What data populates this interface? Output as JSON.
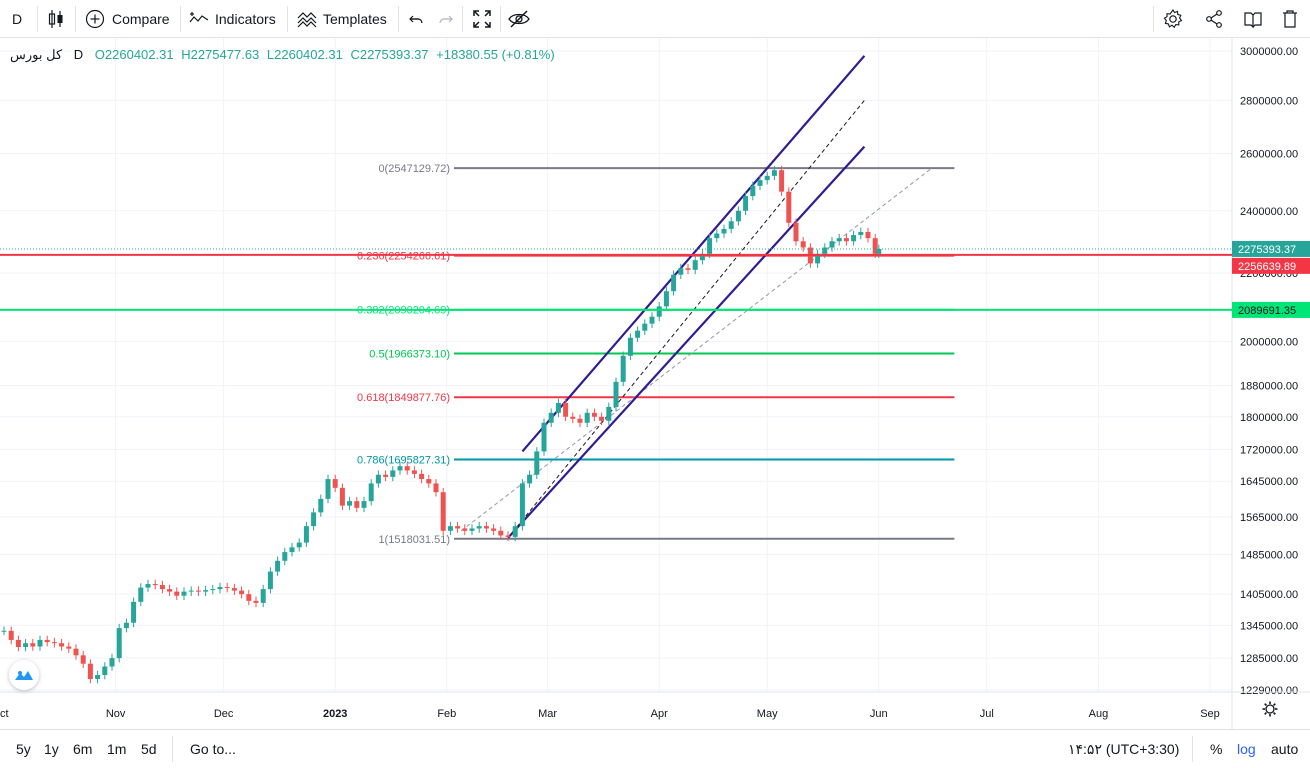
{
  "toolbar": {
    "interval": "D",
    "compare": "Compare",
    "indicators": "Indicators",
    "templates": "Templates"
  },
  "legend": {
    "symbol": "کل بورس",
    "interval": "D",
    "open": "O2260402.31",
    "high": "H2275477.63",
    "low": "L2260402.31",
    "close": "C2275393.37",
    "change": "+18380.55 (+0.81%)"
  },
  "colors": {
    "up": "#26a69a",
    "down": "#ef5350",
    "channel": "#311b92",
    "fib_gray": "#787b86",
    "fib_red": "#f23645",
    "fib_green": "#22ab94",
    "fib_lime": "#00e676",
    "fib_teal": "#0097a7"
  },
  "chart_data": {
    "type": "candlestick",
    "title": "کل بورس, D",
    "y_axis": {
      "min": 1229000,
      "max": 3000000,
      "scale": "log",
      "ticks": [
        1229000,
        1285000,
        1345000,
        1405000,
        1485000,
        1565000,
        1645000,
        1720000,
        1800000,
        1880000,
        2000000,
        2089691.35,
        2200000,
        2256639.89,
        2275393.37,
        2400000,
        2600000,
        2800000,
        3000000
      ],
      "tick_labels": [
        "1229000.00",
        "1285000.00",
        "1345000.00",
        "1405000.00",
        "1485000.00",
        "1565000.00",
        "1645000.00",
        "1720000.00",
        "1800000.00",
        "1880000.00",
        "2000000.00",
        "2089691.35",
        "2200000.00",
        "2256639.89",
        "2275393.37",
        "2400000.00",
        "2600000.00",
        "2800000.00",
        "3000000.00"
      ]
    },
    "x_axis": {
      "labels": [
        "Oct",
        "Nov",
        "Dec",
        "2023",
        "Feb",
        "Mar",
        "Apr",
        "May",
        "Jun",
        "Jul",
        "Aug",
        "Sep"
      ],
      "label_day_index": [
        0,
        31,
        61,
        92,
        123,
        151,
        182,
        212,
        243,
        273,
        304,
        335
      ]
    },
    "candles_daily_close": [
      {
        "d": 0,
        "c": 1335000
      },
      {
        "d": 2,
        "c": 1318000
      },
      {
        "d": 4,
        "c": 1305000
      },
      {
        "d": 6,
        "c": 1312000
      },
      {
        "d": 8,
        "c": 1306000
      },
      {
        "d": 10,
        "c": 1318000
      },
      {
        "d": 12,
        "c": 1314000
      },
      {
        "d": 14,
        "c": 1312000
      },
      {
        "d": 16,
        "c": 1306000
      },
      {
        "d": 18,
        "c": 1302000
      },
      {
        "d": 20,
        "c": 1290000
      },
      {
        "d": 22,
        "c": 1275000
      },
      {
        "d": 24,
        "c": 1248000
      },
      {
        "d": 26,
        "c": 1255000
      },
      {
        "d": 28,
        "c": 1270000
      },
      {
        "d": 30,
        "c": 1285000
      },
      {
        "d": 32,
        "c": 1340000
      },
      {
        "d": 34,
        "c": 1350000
      },
      {
        "d": 36,
        "c": 1390000
      },
      {
        "d": 38,
        "c": 1418000
      },
      {
        "d": 40,
        "c": 1425000
      },
      {
        "d": 42,
        "c": 1423000
      },
      {
        "d": 44,
        "c": 1415000
      },
      {
        "d": 46,
        "c": 1410000
      },
      {
        "d": 48,
        "c": 1402000
      },
      {
        "d": 50,
        "c": 1410000
      },
      {
        "d": 52,
        "c": 1412000
      },
      {
        "d": 54,
        "c": 1410000
      },
      {
        "d": 56,
        "c": 1413000
      },
      {
        "d": 58,
        "c": 1415000
      },
      {
        "d": 60,
        "c": 1419000
      },
      {
        "d": 62,
        "c": 1417000
      },
      {
        "d": 64,
        "c": 1412000
      },
      {
        "d": 66,
        "c": 1405000
      },
      {
        "d": 68,
        "c": 1392000
      },
      {
        "d": 70,
        "c": 1388000
      },
      {
        "d": 72,
        "c": 1415000
      },
      {
        "d": 74,
        "c": 1450000
      },
      {
        "d": 76,
        "c": 1472000
      },
      {
        "d": 78,
        "c": 1490000
      },
      {
        "d": 80,
        "c": 1500000
      },
      {
        "d": 82,
        "c": 1510000
      },
      {
        "d": 84,
        "c": 1545000
      },
      {
        "d": 86,
        "c": 1575000
      },
      {
        "d": 88,
        "c": 1605000
      },
      {
        "d": 90,
        "c": 1650000
      },
      {
        "d": 92,
        "c": 1630000
      },
      {
        "d": 94,
        "c": 1590000
      },
      {
        "d": 96,
        "c": 1600000
      },
      {
        "d": 98,
        "c": 1585000
      },
      {
        "d": 100,
        "c": 1600000
      },
      {
        "d": 102,
        "c": 1640000
      },
      {
        "d": 104,
        "c": 1660000
      },
      {
        "d": 106,
        "c": 1655000
      },
      {
        "d": 108,
        "c": 1670000
      },
      {
        "d": 110,
        "c": 1680000
      },
      {
        "d": 112,
        "c": 1670000
      },
      {
        "d": 114,
        "c": 1662000
      },
      {
        "d": 116,
        "c": 1650000
      },
      {
        "d": 118,
        "c": 1640000
      },
      {
        "d": 120,
        "c": 1620000
      },
      {
        "d": 122,
        "c": 1535000
      },
      {
        "d": 124,
        "c": 1545000
      },
      {
        "d": 126,
        "c": 1540000
      },
      {
        "d": 128,
        "c": 1535000
      },
      {
        "d": 130,
        "c": 1540000
      },
      {
        "d": 132,
        "c": 1545000
      },
      {
        "d": 134,
        "c": 1540000
      },
      {
        "d": 136,
        "c": 1535000
      },
      {
        "d": 138,
        "c": 1525000
      },
      {
        "d": 140,
        "c": 1522000
      },
      {
        "d": 142,
        "c": 1545000
      },
      {
        "d": 144,
        "c": 1640000
      },
      {
        "d": 146,
        "c": 1660000
      },
      {
        "d": 148,
        "c": 1715000
      },
      {
        "d": 150,
        "c": 1785000
      },
      {
        "d": 152,
        "c": 1810000
      },
      {
        "d": 154,
        "c": 1835000
      },
      {
        "d": 156,
        "c": 1800000
      },
      {
        "d": 158,
        "c": 1795000
      },
      {
        "d": 160,
        "c": 1785000
      },
      {
        "d": 162,
        "c": 1810000
      },
      {
        "d": 164,
        "c": 1800000
      },
      {
        "d": 166,
        "c": 1790000
      },
      {
        "d": 168,
        "c": 1825000
      },
      {
        "d": 170,
        "c": 1890000
      },
      {
        "d": 172,
        "c": 1960000
      },
      {
        "d": 174,
        "c": 2010000
      },
      {
        "d": 176,
        "c": 2030000
      },
      {
        "d": 178,
        "c": 2050000
      },
      {
        "d": 180,
        "c": 2070000
      },
      {
        "d": 182,
        "c": 2100000
      },
      {
        "d": 184,
        "c": 2145000
      },
      {
        "d": 186,
        "c": 2195000
      },
      {
        "d": 188,
        "c": 2215000
      },
      {
        "d": 190,
        "c": 2210000
      },
      {
        "d": 192,
        "c": 2240000
      },
      {
        "d": 194,
        "c": 2260000
      },
      {
        "d": 196,
        "c": 2310000
      },
      {
        "d": 198,
        "c": 2325000
      },
      {
        "d": 200,
        "c": 2340000
      },
      {
        "d": 202,
        "c": 2365000
      },
      {
        "d": 204,
        "c": 2400000
      },
      {
        "d": 206,
        "c": 2450000
      },
      {
        "d": 208,
        "c": 2485000
      },
      {
        "d": 210,
        "c": 2505000
      },
      {
        "d": 212,
        "c": 2520000
      },
      {
        "d": 214,
        "c": 2540000
      },
      {
        "d": 216,
        "c": 2465000
      },
      {
        "d": 218,
        "c": 2360000
      },
      {
        "d": 220,
        "c": 2300000
      },
      {
        "d": 222,
        "c": 2280000
      },
      {
        "d": 224,
        "c": 2230000
      },
      {
        "d": 226,
        "c": 2260000
      },
      {
        "d": 228,
        "c": 2280000
      },
      {
        "d": 230,
        "c": 2300000
      },
      {
        "d": 232,
        "c": 2310000
      },
      {
        "d": 234,
        "c": 2300000
      },
      {
        "d": 236,
        "c": 2320000
      },
      {
        "d": 238,
        "c": 2330000
      },
      {
        "d": 240,
        "c": 2310000
      },
      {
        "d": 242,
        "c": 2260000
      },
      {
        "d": 243,
        "c": 2275393.37
      }
    ],
    "fibonacci": [
      {
        "ratio": "0",
        "value": 2547129.72,
        "label": "0(2547129.72)",
        "color": "#787b86"
      },
      {
        "ratio": "0.236",
        "value": 2254266.61,
        "label": "0.236(2254266.61)",
        "color": "#f23645"
      },
      {
        "ratio": "0.382",
        "value": 2090204.69,
        "label": "0.382(2090204.69)",
        "color": "#00e676"
      },
      {
        "ratio": "0.5",
        "value": 1966373.1,
        "label": "0.5(1966373.10)",
        "color": "#00c853"
      },
      {
        "ratio": "0.618",
        "value": 1849877.76,
        "label": "0.618(1849877.76)",
        "color": "#f23645"
      },
      {
        "ratio": "0.786",
        "value": 1695827.31,
        "label": "0.786(1695827.31)",
        "color": "#0097a7"
      },
      {
        "ratio": "1",
        "value": 1518031.51,
        "label": "1(1518031.51)",
        "color": "#787b86"
      }
    ],
    "price_lines": [
      {
        "value": 2275393.37,
        "label": "2275393.37",
        "color": "#26a69a"
      },
      {
        "value": 2256639.89,
        "label": "2256639.89",
        "color": "#f23645"
      },
      {
        "value": 2089691.35,
        "label": "2089691.35",
        "color": "#00e676"
      }
    ],
    "channel": {
      "upper": [
        {
          "d": 144,
          "v": 1715000
        },
        {
          "d": 239,
          "v": 2980000
        }
      ],
      "middle": [
        {
          "d": 140,
          "v": 1520000
        },
        {
          "d": 239,
          "v": 2800000
        }
      ],
      "lower": [
        {
          "d": 140,
          "v": 1520000
        },
        {
          "d": 239,
          "v": 2625000
        }
      ],
      "trend": [
        {
          "d": 127,
          "v": 1535000
        },
        {
          "d": 258,
          "v": 2550000
        }
      ]
    }
  },
  "bottombar": {
    "ranges": [
      "5y",
      "1y",
      "6m",
      "1m",
      "5d"
    ],
    "goto": "Go to...",
    "time": "۱۴:۵۲ (UTC+3:30)",
    "percent": "%",
    "log": "log",
    "auto": "auto"
  }
}
